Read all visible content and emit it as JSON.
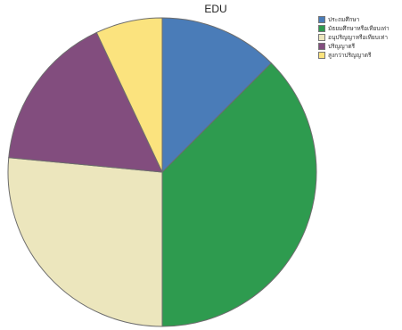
{
  "chart_data": {
    "type": "pie",
    "title": "EDU",
    "legend_position": "top-right",
    "series": [
      {
        "name": "ประถมศึกษา",
        "value": 12.5,
        "color": "#4a7cb8"
      },
      {
        "name": "มัธยมศึกษาหรือเทียบเท่า",
        "value": 37.5,
        "color": "#2e9b4f"
      },
      {
        "name": "อนุปริญญาหรือเทียบเท่า",
        "value": 26.5,
        "color": "#ece6bd"
      },
      {
        "name": "ปริญญาตรี",
        "value": 16.5,
        "color": "#824d7e"
      },
      {
        "name": "สูงกว่าปริญญาตรี",
        "value": 7.0,
        "color": "#fbe37e"
      }
    ]
  }
}
